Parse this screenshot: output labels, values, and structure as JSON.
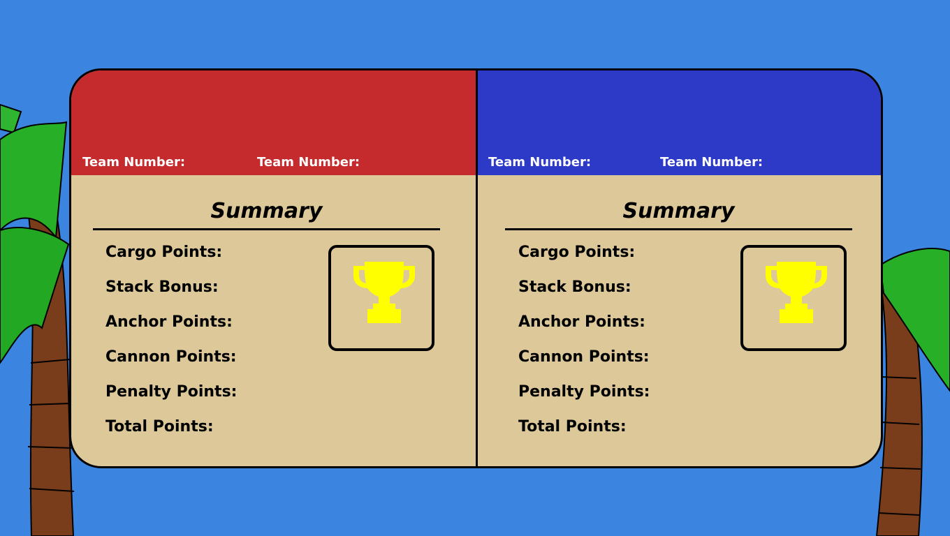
{
  "colors": {
    "background": "#3b84df",
    "red_team": "#c52a2d",
    "blue_team": "#2c3ac7",
    "board": "#ddc89a",
    "trophy": "#ffff00"
  },
  "red_alliance": {
    "team_labels": [
      "Team Number:",
      "Team Number:"
    ],
    "summary_title": "Summary",
    "score_labels": [
      "Cargo Points:",
      "Stack Bonus:",
      "Anchor Points:",
      "Cannon Points:",
      "Penalty Points:",
      "Total Points:"
    ],
    "trophy_icon": "trophy-icon"
  },
  "blue_alliance": {
    "team_labels": [
      "Team Number:",
      "Team Number:"
    ],
    "summary_title": "Summary",
    "score_labels": [
      "Cargo Points:",
      "Stack Bonus:",
      "Anchor Points:",
      "Cannon Points:",
      "Penalty Points:",
      "Total Points:"
    ],
    "trophy_icon": "trophy-icon"
  }
}
